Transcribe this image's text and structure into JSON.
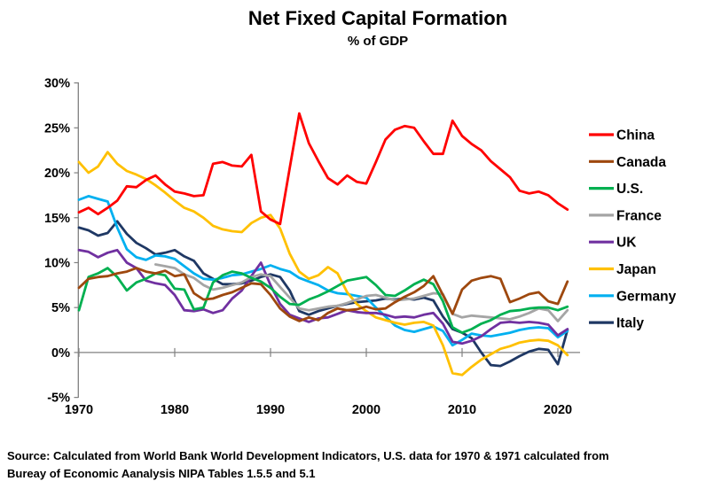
{
  "header": {
    "title": "Net Fixed Capital Formation",
    "subtitle": "% of GDP"
  },
  "source": {
    "line1": "Source:  Calculated from World Bank World Development Indicators, U.S. data for 1970 & 1971 calculated from",
    "line2": "Bureay of Economic Aanalysis NIPA Tables 1.5.5 and 5.1"
  },
  "chart_data": {
    "type": "line",
    "title": "Net Fixed Capital Formation",
    "subtitle": "% of GDP",
    "ylabel": "",
    "xlabel": "",
    "ylim": [
      -5,
      30
    ],
    "xlim": [
      1970,
      2022
    ],
    "grid": "zero-line-only",
    "legend_position": "right",
    "x_ticks": [
      1970,
      1980,
      1990,
      2000,
      2010,
      2020
    ],
    "y_ticks": [
      {
        "label": "30%",
        "value": 30
      },
      {
        "label": "25%",
        "value": 25
      },
      {
        "label": "20%",
        "value": 20
      },
      {
        "label": "15%",
        "value": 15
      },
      {
        "label": "10%",
        "value": 10
      },
      {
        "label": "5%",
        "value": 5
      },
      {
        "label": "0%",
        "value": 0
      },
      {
        "label": "-5%",
        "value": -5
      }
    ],
    "x_years": [
      1970,
      1971,
      1972,
      1973,
      1974,
      1975,
      1976,
      1977,
      1978,
      1979,
      1980,
      1981,
      1982,
      1983,
      1984,
      1985,
      1986,
      1987,
      1988,
      1989,
      1990,
      1991,
      1992,
      1993,
      1994,
      1995,
      1996,
      1997,
      1998,
      1999,
      2000,
      2001,
      2002,
      2003,
      2004,
      2005,
      2006,
      2007,
      2008,
      2009,
      2010,
      2011,
      2012,
      2013,
      2014,
      2015,
      2016,
      2017,
      2018,
      2019,
      2020,
      2021
    ],
    "series": [
      {
        "name": "China",
        "color": "#FF0000",
        "values": [
          15.6,
          16.1,
          15.4,
          16.1,
          16.9,
          18.5,
          18.4,
          19.2,
          19.7,
          18.7,
          17.9,
          17.7,
          17.4,
          17.5,
          21.0,
          21.2,
          20.8,
          20.7,
          22.0,
          15.7,
          14.8,
          14.3,
          20.5,
          26.6,
          23.3,
          21.3,
          19.4,
          18.7,
          19.7,
          19.0,
          18.8,
          21.2,
          23.7,
          24.8,
          25.2,
          25.0,
          23.5,
          22.1,
          22.1,
          25.8,
          24.1,
          23.2,
          22.5,
          21.3,
          20.4,
          19.5,
          18.0,
          17.7,
          17.9,
          17.5,
          16.6,
          15.9
        ]
      },
      {
        "name": "Canada",
        "color": "#9E480E",
        "values": [
          7.2,
          8.2,
          8.4,
          8.5,
          8.8,
          9.0,
          9.4,
          9.0,
          8.8,
          9.1,
          8.5,
          8.7,
          6.6,
          5.9,
          6.0,
          6.4,
          6.7,
          7.2,
          7.7,
          7.6,
          6.4,
          4.9,
          4.0,
          3.5,
          3.9,
          3.6,
          4.4,
          4.9,
          4.7,
          4.8,
          5.1,
          4.8,
          4.9,
          5.6,
          6.2,
          6.7,
          7.4,
          8.5,
          6.4,
          4.3,
          7.0,
          8.0,
          8.3,
          8.5,
          8.2,
          5.6,
          6.0,
          6.5,
          6.7,
          5.7,
          5.4,
          7.9
        ]
      },
      {
        "name": "U.S.",
        "color": "#00B050",
        "values": [
          4.7,
          8.4,
          8.8,
          9.4,
          8.4,
          6.9,
          7.8,
          8.2,
          8.8,
          8.6,
          7.1,
          7.0,
          4.8,
          5.0,
          7.8,
          8.6,
          9.0,
          8.8,
          8.3,
          7.9,
          7.2,
          6.2,
          5.4,
          5.3,
          5.9,
          6.3,
          6.8,
          7.4,
          8.0,
          8.2,
          8.4,
          7.5,
          6.4,
          6.3,
          6.9,
          7.6,
          8.1,
          7.6,
          5.7,
          2.8,
          2.2,
          2.6,
          3.2,
          3.6,
          4.2,
          4.6,
          4.7,
          4.9,
          5.0,
          5.0,
          4.7,
          5.1
        ]
      },
      {
        "name": "France",
        "color": "#A5A5A5",
        "values": [
          null,
          null,
          null,
          null,
          null,
          null,
          null,
          null,
          9.8,
          9.6,
          9.4,
          8.7,
          8.3,
          7.5,
          7.0,
          7.2,
          7.5,
          7.8,
          8.4,
          8.7,
          8.5,
          7.3,
          6.1,
          4.9,
          4.7,
          4.9,
          5.1,
          5.2,
          5.5,
          5.9,
          6.3,
          6.4,
          6.1,
          5.8,
          5.9,
          6.0,
          6.3,
          6.6,
          6.5,
          4.3,
          3.9,
          4.1,
          4.0,
          3.9,
          3.8,
          3.7,
          4.0,
          4.4,
          4.9,
          4.7,
          3.5,
          4.7
        ]
      },
      {
        "name": "UK",
        "color": "#7030A0",
        "values": [
          11.4,
          11.2,
          10.6,
          11.1,
          11.4,
          10.0,
          9.4,
          8.0,
          7.7,
          7.5,
          6.4,
          4.7,
          4.6,
          4.8,
          4.4,
          4.7,
          6.0,
          6.9,
          8.5,
          10.0,
          7.5,
          5.4,
          4.2,
          3.8,
          3.4,
          3.8,
          3.9,
          4.3,
          4.7,
          4.5,
          4.4,
          4.4,
          4.2,
          3.9,
          4.0,
          3.9,
          4.2,
          4.4,
          3.2,
          1.2,
          1.0,
          1.3,
          1.8,
          2.6,
          3.3,
          3.4,
          3.3,
          3.4,
          3.3,
          3.1,
          1.9,
          2.6
        ]
      },
      {
        "name": "Japan",
        "color": "#FFC000",
        "values": [
          21.2,
          20.0,
          20.7,
          22.3,
          21.0,
          20.2,
          19.8,
          19.3,
          18.6,
          17.8,
          16.9,
          16.1,
          15.7,
          15.0,
          14.1,
          13.7,
          13.5,
          13.4,
          14.4,
          15.0,
          15.3,
          13.8,
          11.0,
          9.0,
          8.2,
          8.6,
          9.5,
          8.8,
          6.7,
          5.4,
          4.6,
          3.9,
          3.6,
          3.3,
          3.1,
          3.3,
          3.4,
          3.0,
          0.8,
          -2.3,
          -2.5,
          -1.6,
          -0.8,
          -0.2,
          0.4,
          0.7,
          1.1,
          1.3,
          1.4,
          1.3,
          0.8,
          -0.3
        ]
      },
      {
        "name": "Germany",
        "color": "#00B0F0",
        "values": [
          17.0,
          17.4,
          17.1,
          16.8,
          13.9,
          11.5,
          10.6,
          10.3,
          10.8,
          10.7,
          10.4,
          9.6,
          8.8,
          8.2,
          8.1,
          8.3,
          8.6,
          8.7,
          9.0,
          9.3,
          9.7,
          9.3,
          9.0,
          8.3,
          7.9,
          7.5,
          6.9,
          6.6,
          6.5,
          6.3,
          6.1,
          5.0,
          4.0,
          3.0,
          2.5,
          2.3,
          2.6,
          2.9,
          2.4,
          0.8,
          1.4,
          2.1,
          1.9,
          1.8,
          2.0,
          2.2,
          2.5,
          2.7,
          2.8,
          2.7,
          1.7,
          2.4
        ]
      },
      {
        "name": "Italy",
        "color": "#1F3864",
        "values": [
          13.9,
          13.6,
          13.0,
          13.3,
          14.6,
          13.2,
          12.2,
          11.6,
          10.9,
          11.1,
          11.4,
          10.7,
          10.2,
          8.8,
          8.2,
          7.6,
          7.6,
          7.7,
          8.0,
          8.4,
          8.7,
          8.4,
          6.9,
          4.6,
          4.2,
          4.6,
          4.9,
          5.2,
          5.4,
          5.6,
          5.7,
          5.8,
          6.0,
          5.9,
          6.0,
          5.9,
          6.1,
          5.8,
          4.0,
          2.6,
          2.2,
          1.6,
          0.0,
          -1.4,
          -1.5,
          -1.0,
          -0.4,
          0.1,
          0.4,
          0.3,
          -1.3,
          2.5
        ]
      }
    ]
  }
}
